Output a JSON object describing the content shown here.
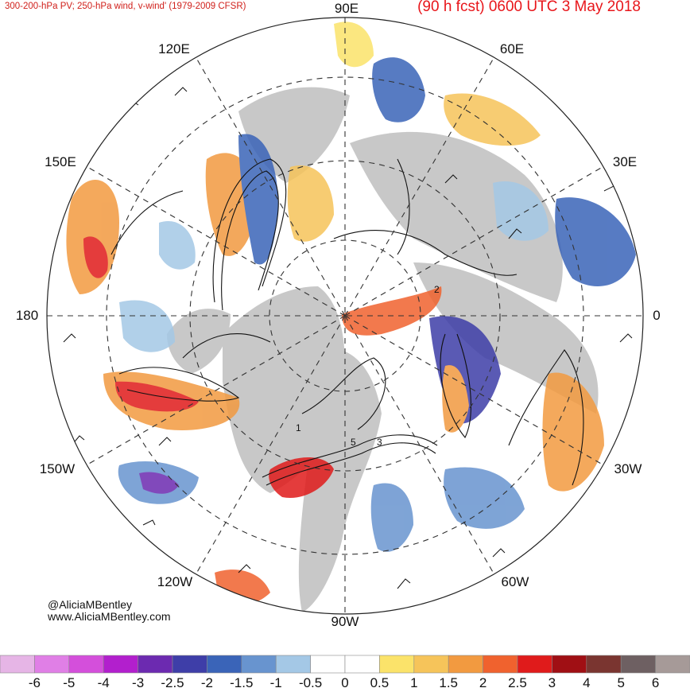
{
  "header": {
    "title_left": "300-200-hPa PV; 250-hPa wind, v-wind' (1979-2009 CFSR)",
    "title_right": "(90 h fcst) 0600 UTC 3 May 2018"
  },
  "map": {
    "projection": "north-polar-stereographic",
    "longitude_labels": [
      "90E",
      "60E",
      "30E",
      "0",
      "30W",
      "60W",
      "90W",
      "120W",
      "150W",
      "180",
      "150E",
      "120E"
    ],
    "contour_labels": [
      "1",
      "2",
      "3",
      "5"
    ],
    "fill_colors": {
      "ocean": "#ffffff",
      "land": "#c8c8c8"
    }
  },
  "credit": {
    "handle": "@AliciaMBentley",
    "website": "www.AliciaMBentley.com"
  },
  "colorbar": {
    "ticks": [
      "-6",
      "-5",
      "-4",
      "-3",
      "-2.5",
      "-2",
      "-1.5",
      "-1",
      "-0.5",
      "0",
      "0.5",
      "1",
      "1.5",
      "2",
      "2.5",
      "3",
      "4",
      "5",
      "6"
    ],
    "colors": [
      "#e6b5e6",
      "#e07fe6",
      "#d44fdb",
      "#b21fcd",
      "#6c2ab0",
      "#3e3ea8",
      "#3a64b8",
      "#6894cf",
      "#a4c8e6",
      "#ffffff",
      "#ffffff",
      "#fbe36a",
      "#f6c45a",
      "#f29a40",
      "#f0622e",
      "#e01b1b",
      "#a00f14",
      "#7a3530",
      "#6e6062",
      "#a69a98"
    ]
  }
}
